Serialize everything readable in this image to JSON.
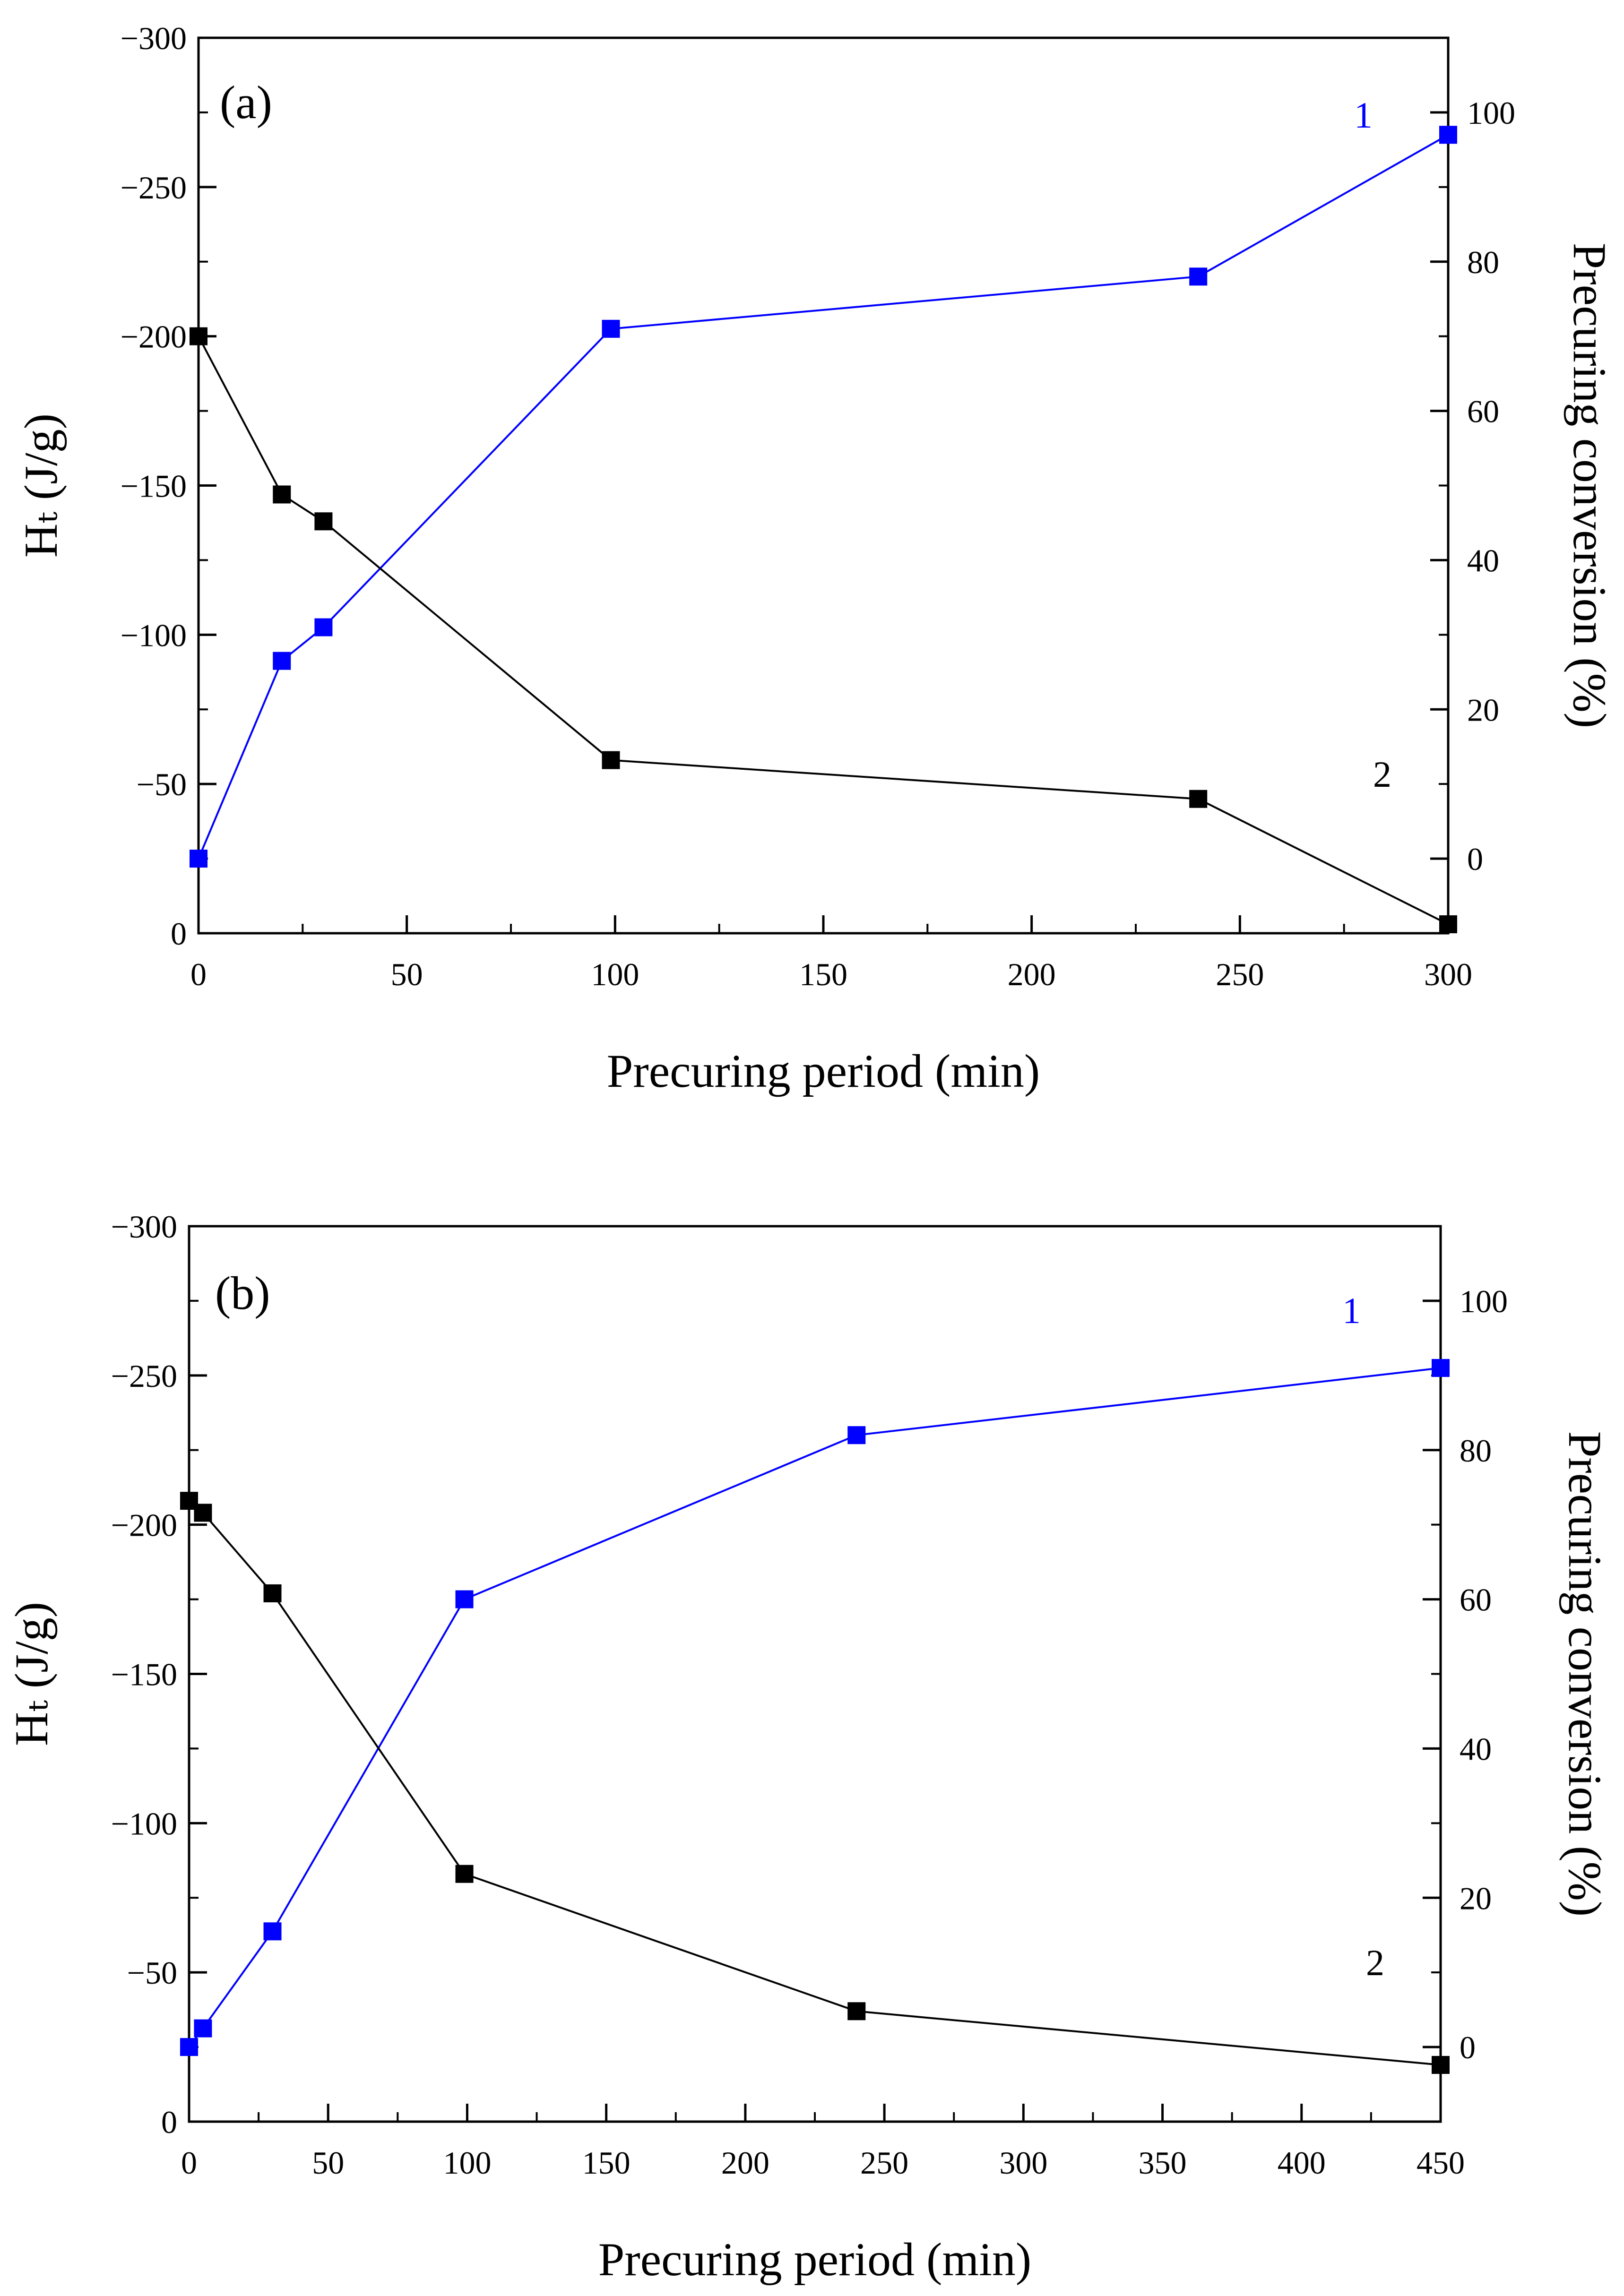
{
  "chart_data": [
    {
      "type": "line",
      "panel_label": "(a)",
      "xlabel": "Precuring period (min)",
      "ylabel_left": "Hₜ (J/g)",
      "ylabel_right": "Precuring conversion (%)",
      "xlim": [
        0,
        300
      ],
      "xticks": [
        0,
        50,
        100,
        150,
        200,
        250,
        300
      ],
      "ylim_left": [
        0,
        -300
      ],
      "yticks_left": [
        0,
        -50,
        -100,
        -150,
        -200,
        -250,
        -300
      ],
      "ylim_right": [
        -10,
        110
      ],
      "yticks_right": [
        0,
        20,
        40,
        60,
        80,
        100
      ],
      "series": [
        {
          "name": "1",
          "label": "1",
          "axis": "right",
          "color": "#0000ff",
          "x": [
            0,
            20,
            30,
            99,
            240,
            300
          ],
          "y": [
            0,
            26.5,
            31,
            71,
            78,
            97
          ]
        },
        {
          "name": "2",
          "label": "2",
          "axis": "left",
          "color": "#000000",
          "x": [
            0,
            20,
            30,
            99,
            240,
            300
          ],
          "y": [
            -200,
            -147,
            -138,
            -58,
            -45,
            -3
          ]
        }
      ]
    },
    {
      "type": "line",
      "panel_label": "(b)",
      "xlabel": "Precuring period (min)",
      "ylabel_left": "Hₜ (J/g)",
      "ylabel_right": "Precuring conversion (%)",
      "xlim": [
        0,
        450
      ],
      "xticks": [
        0,
        50,
        100,
        150,
        200,
        250,
        300,
        350,
        400,
        450
      ],
      "ylim_left": [
        0,
        -300
      ],
      "yticks_left": [
        0,
        -50,
        -100,
        -150,
        -200,
        -250,
        -300
      ],
      "ylim_right": [
        -10,
        110
      ],
      "yticks_right": [
        0,
        20,
        40,
        60,
        80,
        100
      ],
      "series": [
        {
          "name": "1",
          "label": "1",
          "axis": "right",
          "color": "#0000ff",
          "x": [
            0,
            5,
            30,
            99,
            240,
            450
          ],
          "y": [
            0,
            2.5,
            15.5,
            60,
            82,
            91
          ]
        },
        {
          "name": "2",
          "label": "2",
          "axis": "left",
          "color": "#000000",
          "x": [
            0,
            5,
            30,
            99,
            240,
            450
          ],
          "y": [
            -208,
            -204,
            -177,
            -83,
            -37,
            -19
          ]
        }
      ]
    }
  ]
}
